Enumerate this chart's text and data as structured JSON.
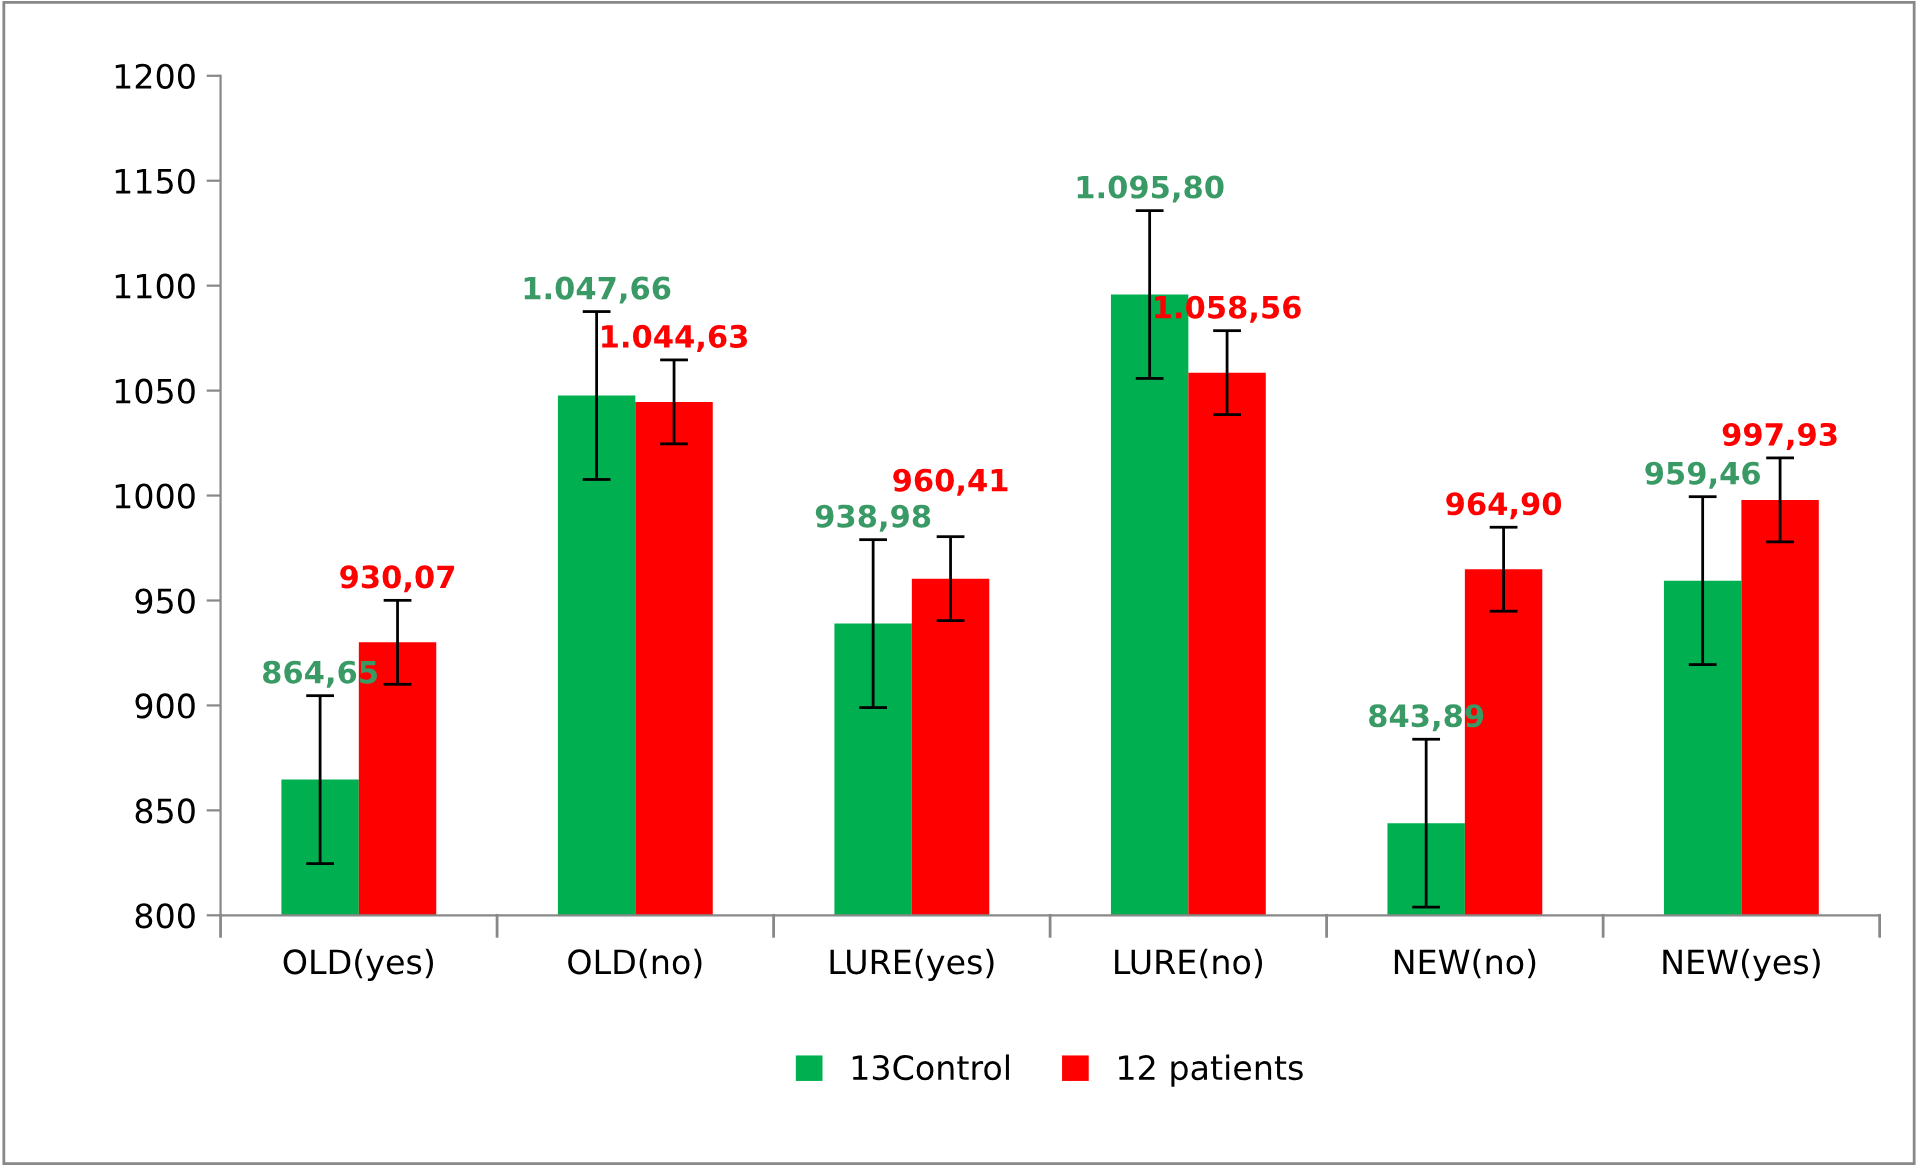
{
  "chart_data": {
    "type": "bar",
    "categories": [
      "OLD(yes)",
      "OLD(no)",
      "LURE(yes)",
      "LURE(no)",
      "NEW(no)",
      "NEW(yes)"
    ],
    "series": [
      {
        "name": "13Control",
        "color": "#00b050",
        "values": [
          864.65,
          1047.66,
          938.98,
          1095.8,
          843.89,
          959.46
        ],
        "errors": [
          40,
          40,
          40,
          40,
          40,
          40
        ],
        "value_labels": [
          "864,65",
          "1.047,66",
          "938,98",
          "1.095,80",
          "843,89",
          "959,46"
        ]
      },
      {
        "name": "12 patients",
        "color": "#ff0000",
        "values": [
          930.07,
          1044.63,
          960.41,
          1058.56,
          964.9,
          997.93
        ],
        "errors": [
          20,
          20,
          20,
          20,
          20,
          20
        ],
        "value_labels": [
          "930,07",
          "1.044,63",
          "960,41",
          "1.058,56",
          "964,90",
          "997,93"
        ]
      }
    ],
    "ylim": [
      800,
      1200
    ],
    "yticks": [
      800,
      850,
      900,
      950,
      1000,
      1050,
      1100,
      1150,
      1200
    ],
    "grid": false,
    "legend": "bottom"
  }
}
